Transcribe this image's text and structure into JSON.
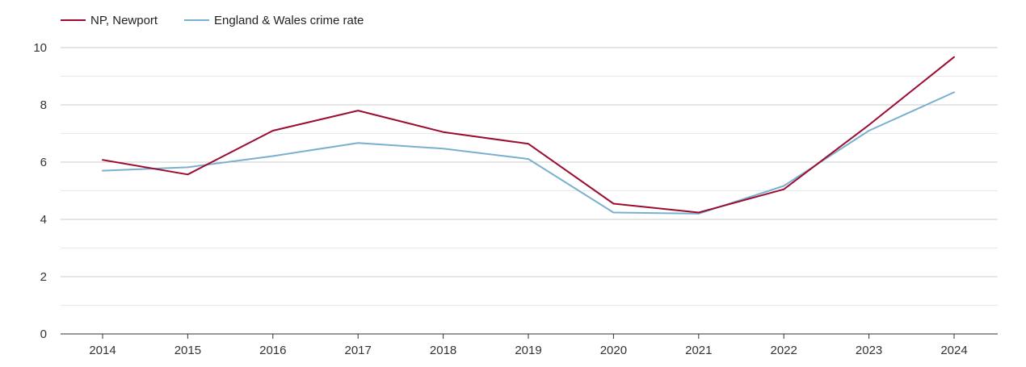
{
  "chart_data": {
    "type": "line",
    "title": "",
    "xlabel": "",
    "ylabel": "",
    "categories": [
      "2014",
      "2015",
      "2016",
      "2017",
      "2018",
      "2019",
      "2020",
      "2021",
      "2022",
      "2023",
      "2024"
    ],
    "ylim": [
      0,
      10
    ],
    "yticks": [
      0,
      2,
      4,
      6,
      8,
      10
    ],
    "grid": true,
    "legend_position": "top-left",
    "series": [
      {
        "name": "NP, Newport",
        "color": "#9b0d30",
        "values": [
          6.08,
          5.57,
          7.1,
          7.8,
          7.05,
          6.64,
          4.55,
          4.24,
          5.05,
          7.3,
          9.67
        ]
      },
      {
        "name": "England & Wales crime rate",
        "color": "#7ab0cf",
        "values": [
          5.7,
          5.82,
          6.21,
          6.67,
          6.47,
          6.11,
          4.24,
          4.2,
          5.17,
          7.1,
          8.44
        ]
      }
    ]
  }
}
